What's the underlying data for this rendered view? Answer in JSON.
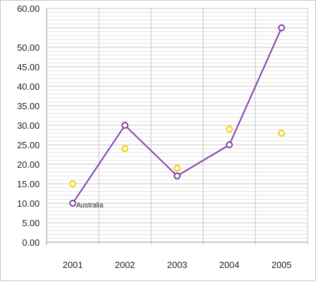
{
  "chart_data": {
    "type": "line",
    "categories": [
      "2001",
      "2002",
      "2003",
      "2004",
      "2005"
    ],
    "ylim": [
      0,
      60
    ],
    "yticks": [
      "0.00",
      "5.00",
      "10.00",
      "15.00",
      "20.00",
      "25.00",
      "30.00",
      "35.00",
      "40.00",
      "45.00",
      "50.00",
      "60.00"
    ],
    "ytick_values": [
      0,
      5,
      10,
      15,
      20,
      25,
      30,
      35,
      40,
      45,
      50,
      60
    ],
    "grid": true,
    "series": [
      {
        "values": [
          10,
          30,
          17,
          25,
          55
        ],
        "color": "#8040a8",
        "style": "line-with-hollow-markers"
      },
      {
        "values": [
          15,
          24,
          19,
          29,
          28
        ],
        "color": "#f0d000",
        "style": "hollow-markers-only"
      }
    ],
    "annotations": [
      {
        "text": "Australia",
        "category": "2001",
        "series_index": 0
      }
    ]
  }
}
